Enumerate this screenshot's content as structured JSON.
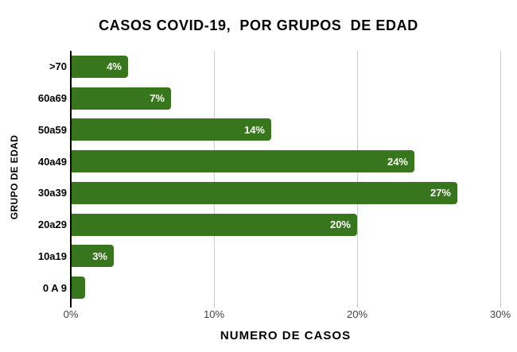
{
  "chart_data": {
    "type": "bar",
    "orientation": "horizontal",
    "title": "CASOS COVID-19,  POR GRUPOS  DE EDAD",
    "xlabel": "NUMERO DE CASOS",
    "ylabel": "GRUPO DE EDAD",
    "categories": [
      ">70",
      "60a69",
      "50a59",
      "40a49",
      "30a39",
      "20a29",
      "10a19",
      "0 A 9"
    ],
    "values": [
      4,
      7,
      14,
      24,
      27,
      20,
      3,
      1
    ],
    "value_labels": [
      "4%",
      "7%",
      "14%",
      "24%",
      "27%",
      "20%",
      "3%",
      ""
    ],
    "xlim": [
      0,
      30
    ],
    "tick_values": [
      0,
      10,
      20,
      30
    ],
    "ticks": [
      "0%",
      "10%",
      "20%",
      "30%"
    ],
    "grid": "vertical-only",
    "legend": "none",
    "bar_color": "#38761d",
    "value_label_color": "#ffffff",
    "gridline_color": "#cccccc",
    "axis_line_color": "#000000",
    "tick_label_color": "#444444",
    "background_color": "#ffffff"
  }
}
